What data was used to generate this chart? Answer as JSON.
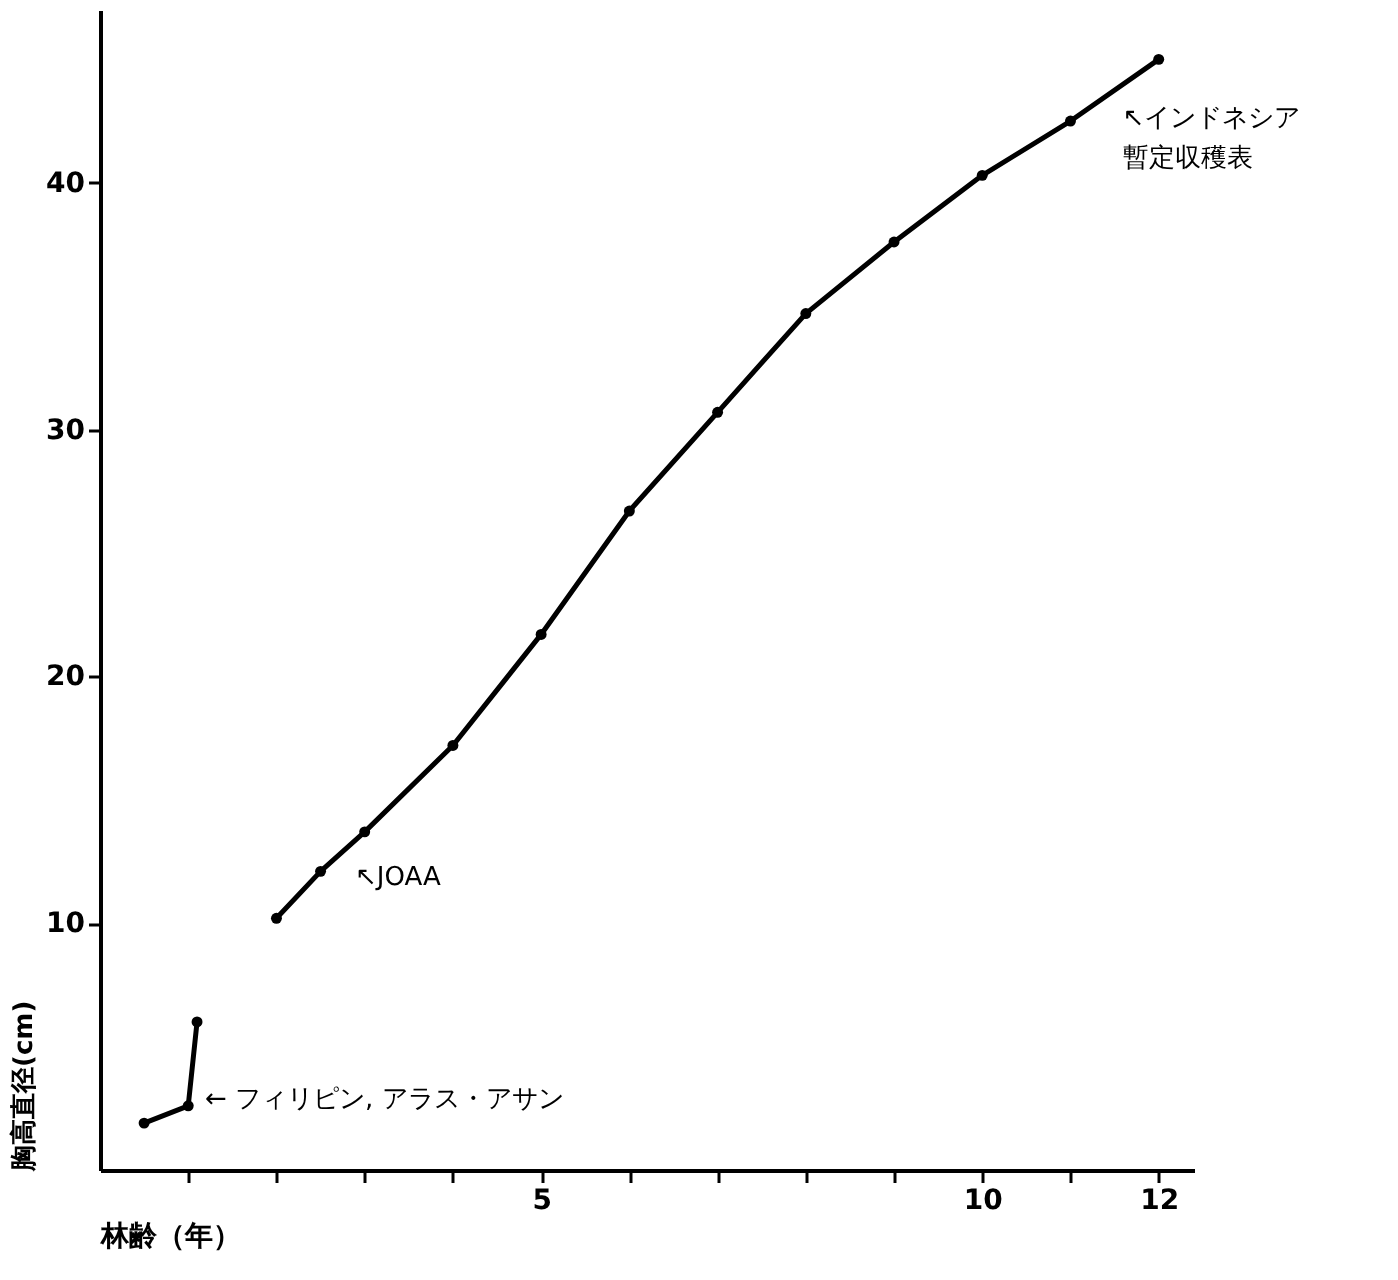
{
  "chart_data": {
    "type": "line",
    "xlabel": "林齢（年）",
    "ylabel": "胸高直径(cm)",
    "xlim": [
      0,
      12.4
    ],
    "ylim": [
      0,
      47
    ],
    "xticks": [
      {
        "value": 1,
        "label": null
      },
      {
        "value": 2,
        "label": null
      },
      {
        "value": 3,
        "label": null
      },
      {
        "value": 4,
        "label": null
      },
      5,
      {
        "value": 6,
        "label": null
      },
      {
        "value": 7,
        "label": null
      },
      {
        "value": 8,
        "label": null
      },
      {
        "value": 9,
        "label": null
      },
      10,
      {
        "value": 11,
        "label": null
      },
      12
    ],
    "yticks": [
      10,
      20,
      30,
      40
    ],
    "marker": "circle",
    "line_style": "solid",
    "grid": false,
    "series": [
      {
        "color": "#000000",
        "x": [
          0.5,
          1.0,
          1.1
        ],
        "values": [
          1.9,
          2.6,
          6.0
        ]
      },
      {
        "color": "#000000",
        "x": [
          2,
          2.5,
          3,
          4,
          5,
          6,
          7,
          8,
          9,
          10,
          11,
          12
        ],
        "values": [
          10.2,
          12.1,
          13.7,
          17.2,
          21.7,
          26.7,
          30.7,
          34.7,
          37.6,
          40.3,
          42.5,
          45.0
        ]
      }
    ],
    "annotations": [
      {
        "text": "← フィリピン, アラス・アサン",
        "x": 1.1,
        "y": 4.0
      },
      {
        "text": "↖JOAA",
        "x": 2.8,
        "y": 13.0
      },
      {
        "text": "↖インドネシア",
        "x": 11.5,
        "y": 43.75
      },
      {
        "text": "暫定収穫表",
        "x": 11.5,
        "y": 43.75
      }
    ]
  }
}
